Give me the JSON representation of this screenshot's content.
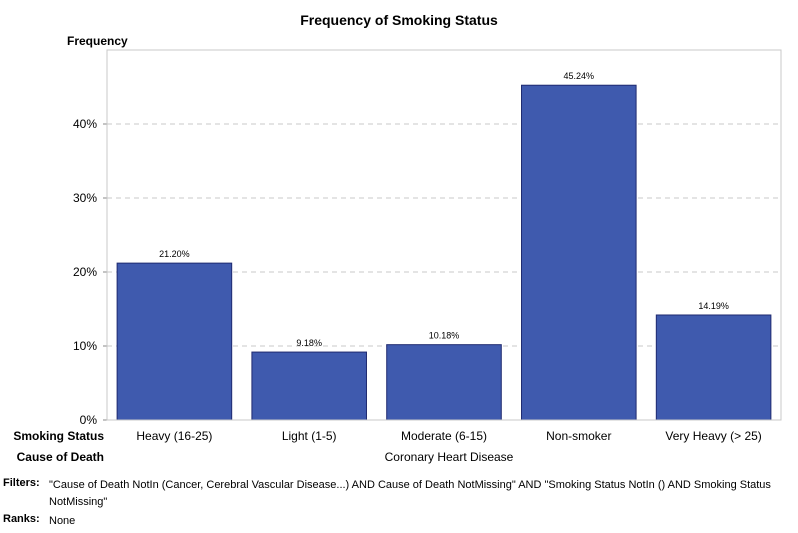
{
  "chart_data": {
    "type": "bar",
    "title": "Frequency of Smoking Status",
    "ylabel": "Frequency",
    "categories": [
      "Heavy (16-25)",
      "Light (1-5)",
      "Moderate (6-15)",
      "Non-smoker",
      "Very Heavy (> 25)"
    ],
    "values": [
      21.2,
      9.18,
      10.18,
      45.24,
      14.19
    ],
    "data_labels": [
      "21.20%",
      "9.18%",
      "10.18%",
      "45.24%",
      "14.19%"
    ],
    "ylim": [
      0,
      50
    ],
    "yticks": [
      0,
      10,
      20,
      30,
      40
    ],
    "ytick_labels": [
      "0%",
      "10%",
      "20%",
      "30%",
      "40%"
    ],
    "grid": true,
    "bar_color": "#3F5AAE",
    "bar_edge_color": "#1F2A70",
    "category_axis_label": "Smoking Status",
    "group_axis_label": "Cause of Death",
    "group_value": "Coronary Heart Disease"
  },
  "footnotes": {
    "filters_label": "Filters:",
    "filters_text": "\"Cause of Death NotIn (Cancer, Cerebral Vascular Disease...) AND Cause of Death NotMissing\" AND \"Smoking Status NotIn () AND Smoking Status NotMissing\"",
    "ranks_label": "Ranks:",
    "ranks_text": "None"
  }
}
